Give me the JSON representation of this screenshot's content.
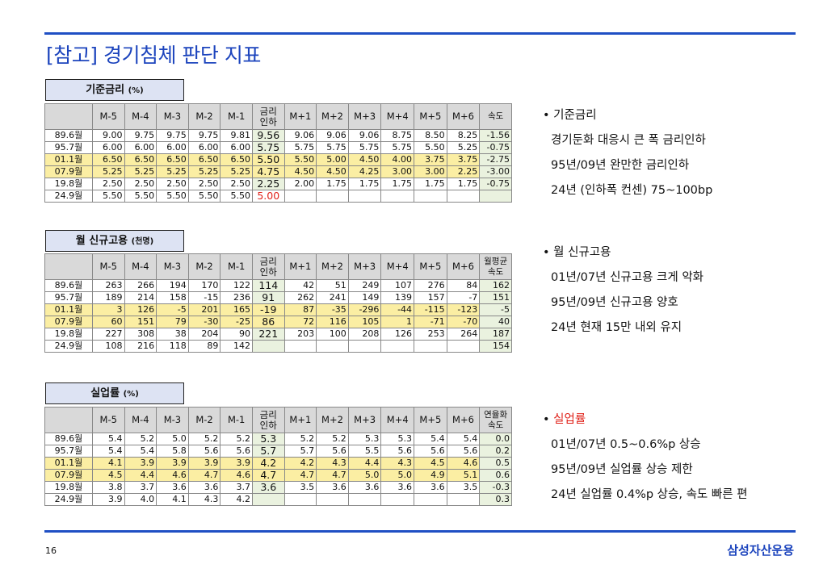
{
  "title": "[참고] 경기침체 판단 지표",
  "page_number": "16",
  "brand": "삼성자산운용",
  "sections": [
    {
      "label": "기준금리",
      "unit": "(%)",
      "headers": [
        "",
        "M-5",
        "M-4",
        "M-3",
        "M-2",
        "M-1",
        "금리\n인하",
        "M+1",
        "M+2",
        "M+3",
        "M+4",
        "M+5",
        "M+6",
        "속도"
      ],
      "rows": [
        {
          "label": "89.6월",
          "values": [
            "9.00",
            "9.75",
            "9.75",
            "9.75",
            "9.81",
            "9.56",
            "9.06",
            "9.06",
            "9.06",
            "8.75",
            "8.50",
            "8.25",
            "-1.56"
          ]
        },
        {
          "label": "95.7월",
          "values": [
            "6.00",
            "6.00",
            "6.00",
            "6.00",
            "6.00",
            "5.75",
            "5.75",
            "5.75",
            "5.75",
            "5.75",
            "5.50",
            "5.25",
            "-0.75"
          ]
        },
        {
          "label": "01.1월",
          "values": [
            "6.50",
            "6.50",
            "6.50",
            "6.50",
            "6.50",
            "5.50",
            "5.50",
            "5.00",
            "4.50",
            "4.00",
            "3.75",
            "3.75",
            "-2.75"
          ]
        },
        {
          "label": "07.9월",
          "values": [
            "5.25",
            "5.25",
            "5.25",
            "5.25",
            "5.25",
            "4.75",
            "4.50",
            "4.50",
            "4.25",
            "3.00",
            "3.00",
            "2.25",
            "-3.00"
          ]
        },
        {
          "label": "19.8월",
          "values": [
            "2.50",
            "2.50",
            "2.50",
            "2.50",
            "2.50",
            "2.25",
            "2.00",
            "1.75",
            "1.75",
            "1.75",
            "1.75",
            "1.75",
            "-0.75"
          ]
        },
        {
          "label": "24.9월",
          "values": [
            "5.50",
            "5.50",
            "5.50",
            "5.50",
            "5.50",
            "5.00",
            "",
            "",
            "",
            "",
            "",
            "",
            ""
          ]
        }
      ]
    },
    {
      "label": "월 신규고용",
      "unit": "(천명)",
      "headers": [
        "",
        "M-5",
        "M-4",
        "M-3",
        "M-2",
        "M-1",
        "금리\n인하",
        "M+1",
        "M+2",
        "M+3",
        "M+4",
        "M+5",
        "M+6",
        "월평균\n속도"
      ],
      "rows": [
        {
          "label": "89.6월",
          "values": [
            "263",
            "266",
            "194",
            "170",
            "122",
            "114",
            "42",
            "51",
            "249",
            "107",
            "276",
            "84",
            "162"
          ]
        },
        {
          "label": "95.7월",
          "values": [
            "189",
            "214",
            "158",
            "-15",
            "236",
            "91",
            "262",
            "241",
            "149",
            "139",
            "157",
            "-7",
            "151"
          ]
        },
        {
          "label": "01.1월",
          "values": [
            "3",
            "126",
            "-5",
            "201",
            "165",
            "-19",
            "87",
            "-35",
            "-296",
            "-44",
            "-115",
            "-123",
            "-5"
          ]
        },
        {
          "label": "07.9월",
          "values": [
            "60",
            "151",
            "79",
            "-30",
            "-25",
            "86",
            "72",
            "116",
            "105",
            "1",
            "-71",
            "-70",
            "40"
          ]
        },
        {
          "label": "19.8월",
          "values": [
            "227",
            "308",
            "38",
            "204",
            "90",
            "221",
            "203",
            "100",
            "208",
            "126",
            "253",
            "264",
            "187"
          ]
        },
        {
          "label": "24.9월",
          "values": [
            "108",
            "216",
            "118",
            "89",
            "142",
            "",
            "",
            "",
            "",
            "",
            "",
            "",
            "154"
          ]
        }
      ]
    },
    {
      "label": "실업률",
      "unit": "(%)",
      "headers": [
        "",
        "M-5",
        "M-4",
        "M-3",
        "M-2",
        "M-1",
        "금리\n인하",
        "M+1",
        "M+2",
        "M+3",
        "M+4",
        "M+5",
        "M+6",
        "연율화\n속도"
      ],
      "rows": [
        {
          "label": "89.6월",
          "values": [
            "5.4",
            "5.2",
            "5.0",
            "5.2",
            "5.2",
            "5.3",
            "5.2",
            "5.2",
            "5.3",
            "5.3",
            "5.4",
            "5.4",
            "0.0"
          ]
        },
        {
          "label": "95.7월",
          "values": [
            "5.4",
            "5.4",
            "5.8",
            "5.6",
            "5.6",
            "5.7",
            "5.7",
            "5.6",
            "5.5",
            "5.6",
            "5.6",
            "5.6",
            "0.2"
          ]
        },
        {
          "label": "01.1월",
          "values": [
            "4.1",
            "3.9",
            "3.9",
            "3.9",
            "3.9",
            "4.2",
            "4.2",
            "4.3",
            "4.4",
            "4.3",
            "4.5",
            "4.6",
            "0.5"
          ]
        },
        {
          "label": "07.9월",
          "values": [
            "4.5",
            "4.4",
            "4.6",
            "4.7",
            "4.6",
            "4.7",
            "4.7",
            "4.7",
            "5.0",
            "5.0",
            "4.9",
            "5.1",
            "0.6"
          ]
        },
        {
          "label": "19.8월",
          "values": [
            "3.8",
            "3.7",
            "3.6",
            "3.6",
            "3.7",
            "3.6",
            "3.5",
            "3.6",
            "3.6",
            "3.6",
            "3.6",
            "3.5",
            "-0.3"
          ]
        },
        {
          "label": "24.9월",
          "values": [
            "3.9",
            "4.0",
            "4.1",
            "4.3",
            "4.2",
            "",
            "",
            "",
            "",
            "",
            "",
            "",
            "0.3"
          ]
        }
      ]
    }
  ],
  "notes": [
    {
      "heading": "기준금리",
      "lines": [
        "경기둔화 대응시 큰 폭 금리인하",
        "95년/09년 완만한 금리인하",
        "24년 (인하폭 컨센) 75~100bp"
      ]
    },
    {
      "heading": "월 신규고용",
      "lines": [
        "01년/07년 신규고용 크게 악화",
        "95년/09년 신규고용 양호",
        "24년 현재 15만 내외 유지"
      ]
    },
    {
      "heading": "실업률",
      "lines": [
        "01년/07년 0.5~0.6%p 상승",
        "95년/09년 실업률 상승 제한",
        "24년 실업률 0.4%p 상승, 속도 빠른 편"
      ]
    }
  ],
  "colors": {
    "accent": "#1c44bd",
    "highlight_row": "#fbeea3",
    "speed_col": "#eaf2df",
    "header_bg": "#d9d9d9",
    "label_box": "#dde3f3",
    "emphasis": "#e0231b"
  }
}
